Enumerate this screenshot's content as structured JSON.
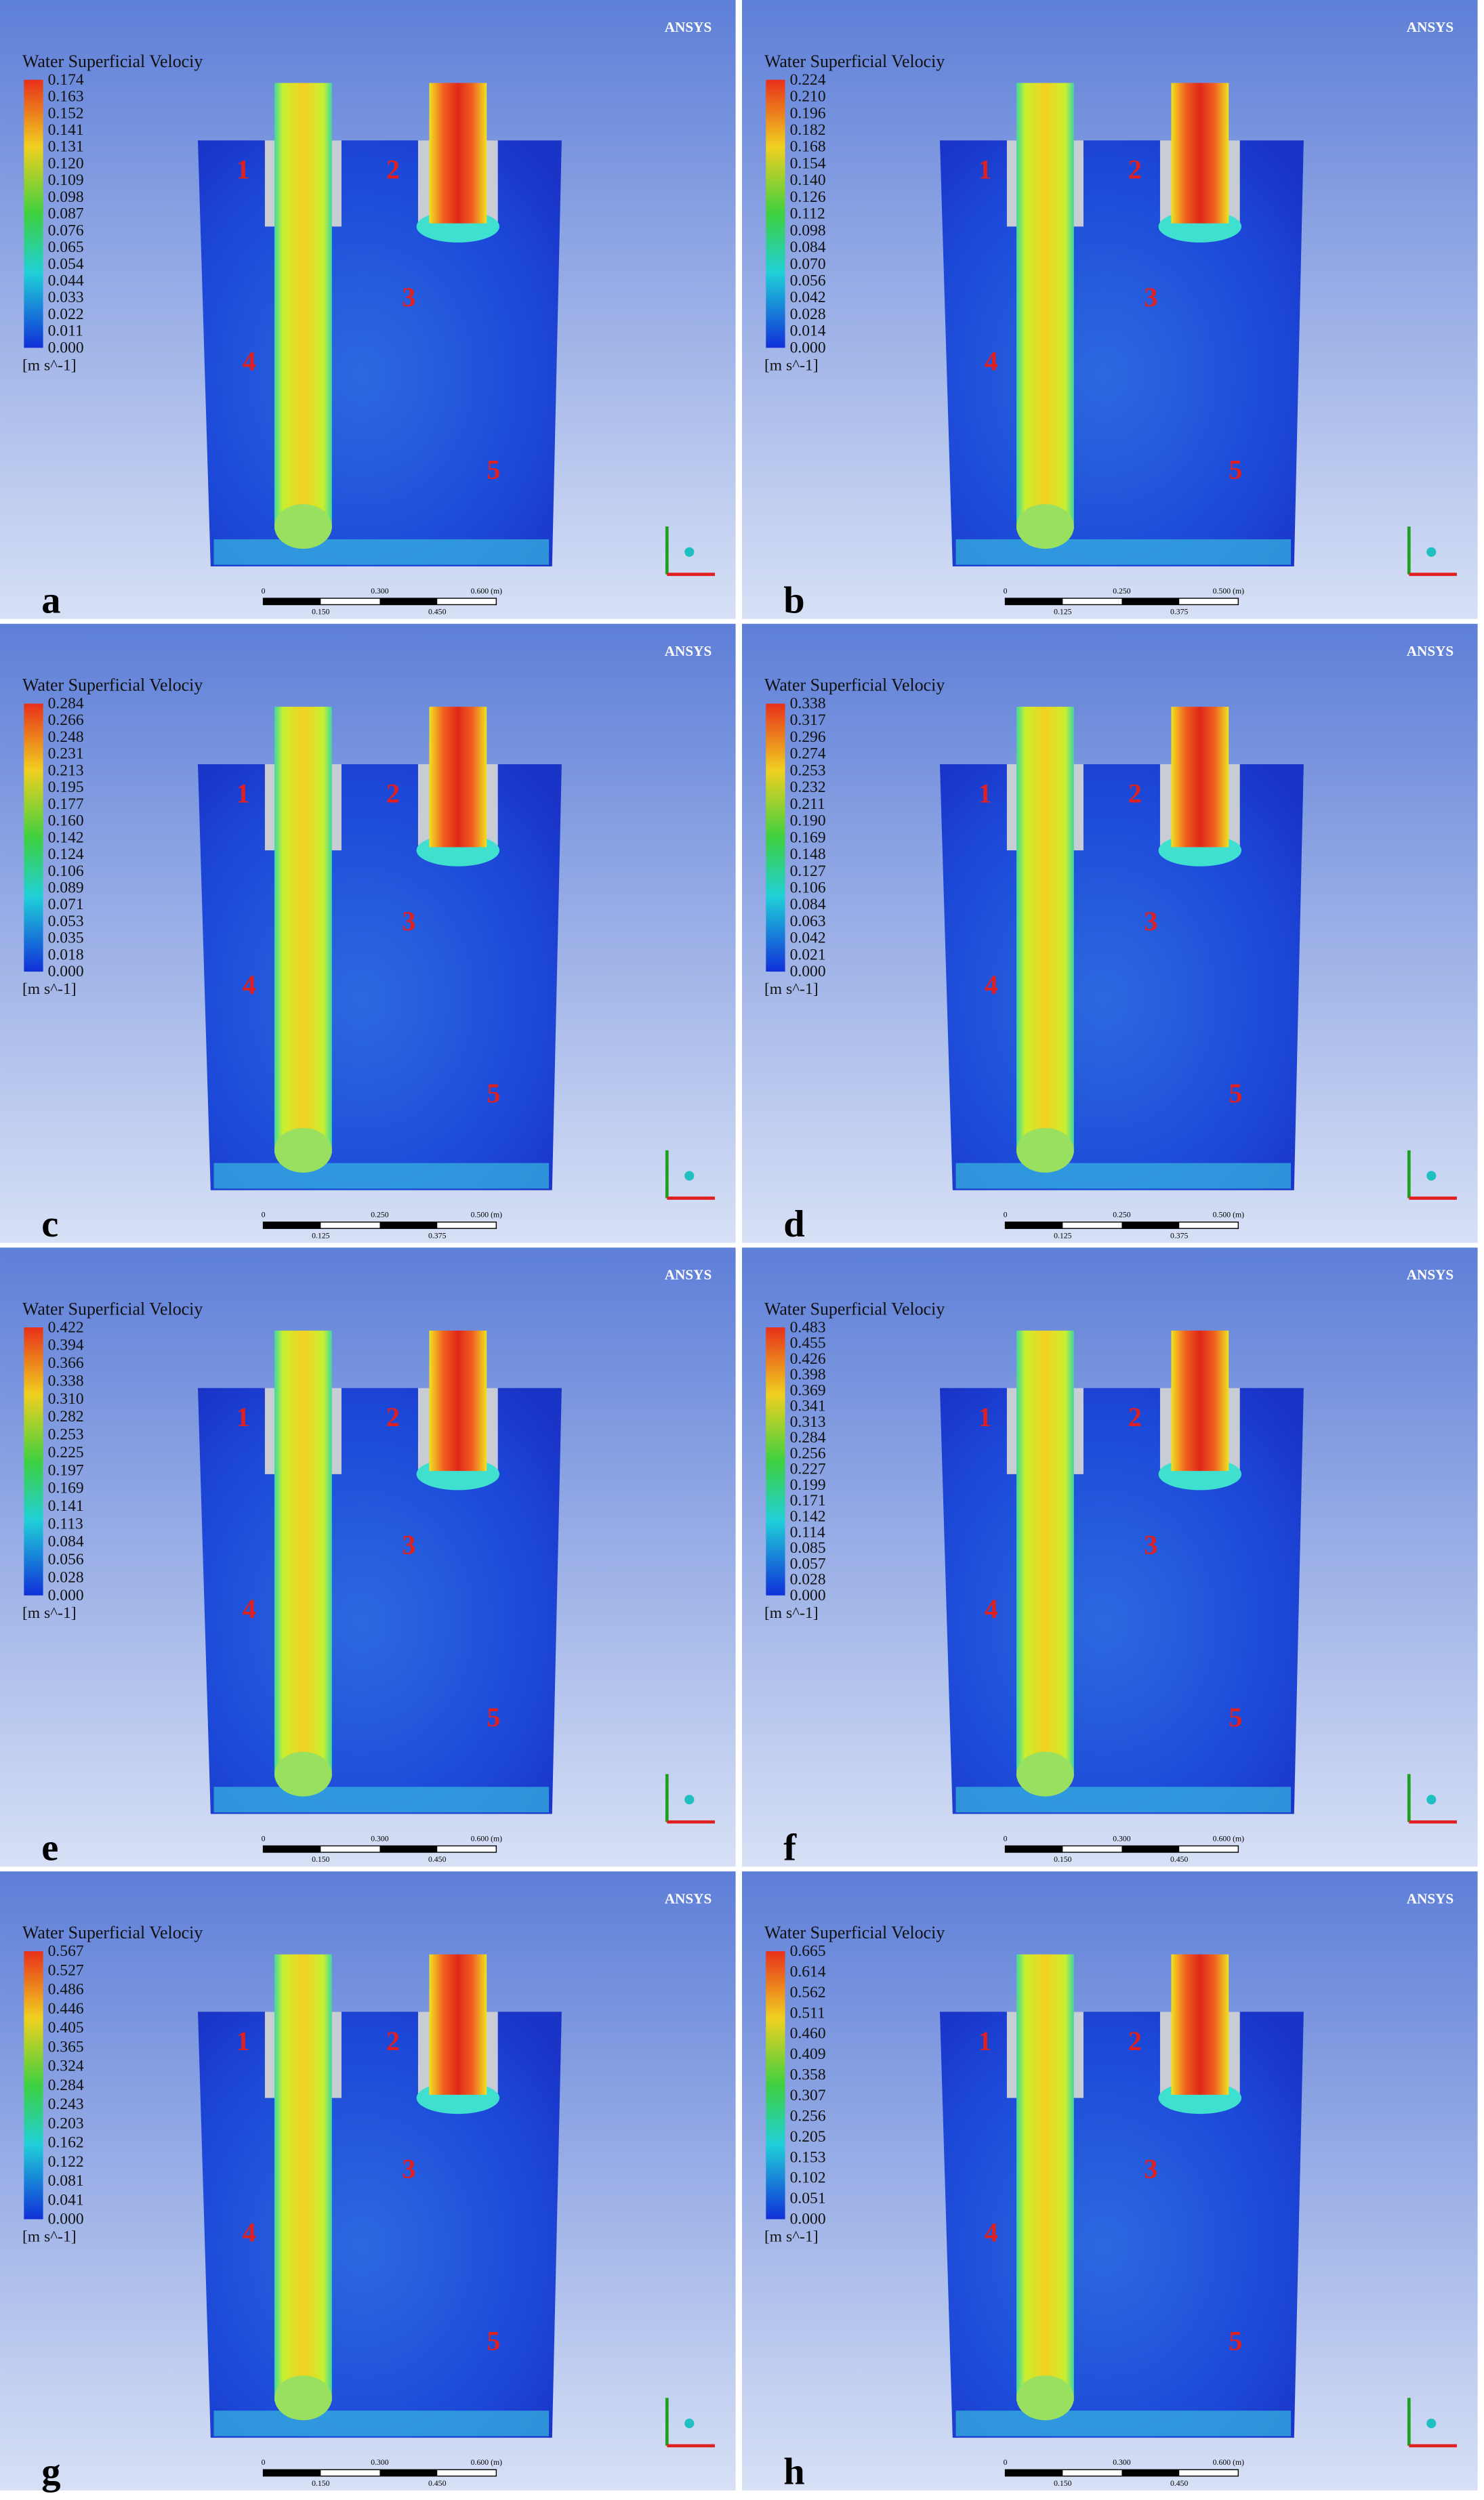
{
  "panels": [
    {
      "letter": "a",
      "logo": "ANSYS",
      "legend_title": "Water Superficial Velociy",
      "unit": "[m s^-1]",
      "ticks": [
        "0.174",
        "0.163",
        "0.152",
        "0.141",
        "0.131",
        "0.120",
        "0.109",
        "0.098",
        "0.087",
        "0.076",
        "0.065",
        "0.054",
        "0.044",
        "0.033",
        "0.022",
        "0.011",
        "0.000"
      ],
      "regions": [
        "1",
        "2",
        "3",
        "4",
        "5"
      ],
      "scale_labels": [
        "0",
        "0.300",
        "0.600 (m)",
        "0.150",
        "0.450"
      ]
    },
    {
      "letter": "b",
      "logo": "ANSYS",
      "legend_title": "Water Superficial Velociy",
      "unit": "[m s^-1]",
      "ticks": [
        "0.224",
        "0.210",
        "0.196",
        "0.182",
        "0.168",
        "0.154",
        "0.140",
        "0.126",
        "0.112",
        "0.098",
        "0.084",
        "0.070",
        "0.056",
        "0.042",
        "0.028",
        "0.014",
        "0.000"
      ],
      "regions": [
        "1",
        "2",
        "3",
        "4",
        "5"
      ],
      "scale_labels": [
        "0",
        "0.250",
        "0.500 (m)",
        "0.125",
        "0.375"
      ]
    },
    {
      "letter": "c",
      "logo": "ANSYS",
      "legend_title": "Water Superficial Velociy",
      "unit": "[m s^-1]",
      "ticks": [
        "0.284",
        "0.266",
        "0.248",
        "0.231",
        "0.213",
        "0.195",
        "0.177",
        "0.160",
        "0.142",
        "0.124",
        "0.106",
        "0.089",
        "0.071",
        "0.053",
        "0.035",
        "0.018",
        "0.000"
      ],
      "regions": [
        "1",
        "2",
        "3",
        "4",
        "5"
      ],
      "scale_labels": [
        "0",
        "0.250",
        "0.500 (m)",
        "0.125",
        "0.375"
      ]
    },
    {
      "letter": "d",
      "logo": "ANSYS",
      "legend_title": "Water Superficial Velociy",
      "unit": "[m s^-1]",
      "ticks": [
        "0.338",
        "0.317",
        "0.296",
        "0.274",
        "0.253",
        "0.232",
        "0.211",
        "0.190",
        "0.169",
        "0.148",
        "0.127",
        "0.106",
        "0.084",
        "0.063",
        "0.042",
        "0.021",
        "0.000"
      ],
      "regions": [
        "1",
        "2",
        "3",
        "4",
        "5"
      ],
      "scale_labels": [
        "0",
        "0.250",
        "0.500 (m)",
        "0.125",
        "0.375"
      ]
    },
    {
      "letter": "e",
      "logo": "ANSYS",
      "legend_title": "Water Superficial Velociy",
      "unit": "[m s^-1]",
      "ticks": [
        "0.422",
        "0.394",
        "0.366",
        "0.338",
        "0.310",
        "0.282",
        "0.253",
        "0.225",
        "0.197",
        "0.169",
        "0.141",
        "0.113",
        "0.084",
        "0.056",
        "0.028",
        "0.000"
      ],
      "regions": [
        "1",
        "2",
        "3",
        "4",
        "5"
      ],
      "scale_labels": [
        "0",
        "0.300",
        "0.600 (m)",
        "0.150",
        "0.450"
      ]
    },
    {
      "letter": "f",
      "logo": "ANSYS",
      "legend_title": "Water Superficial Velociy",
      "unit": "[m s^-1]",
      "ticks": [
        "0.483",
        "0.455",
        "0.426",
        "0.398",
        "0.369",
        "0.341",
        "0.313",
        "0.284",
        "0.256",
        "0.227",
        "0.199",
        "0.171",
        "0.142",
        "0.114",
        "0.085",
        "0.057",
        "0.028",
        "0.000"
      ],
      "regions": [
        "1",
        "2",
        "3",
        "4",
        "5"
      ],
      "scale_labels": [
        "0",
        "0.300",
        "0.600 (m)",
        "0.150",
        "0.450"
      ]
    },
    {
      "letter": "g",
      "logo": "ANSYS",
      "legend_title": "Water Superficial Velociy",
      "unit": "[m s^-1]",
      "ticks": [
        "0.567",
        "0.527",
        "0.486",
        "0.446",
        "0.405",
        "0.365",
        "0.324",
        "0.284",
        "0.243",
        "0.203",
        "0.162",
        "0.122",
        "0.081",
        "0.041",
        "0.000"
      ],
      "regions": [
        "1",
        "2",
        "3",
        "4",
        "5"
      ],
      "scale_labels": [
        "0",
        "0.300",
        "0.600 (m)",
        "0.150",
        "0.450"
      ]
    },
    {
      "letter": "h",
      "logo": "ANSYS",
      "legend_title": "Water Superficial Velociy",
      "unit": "[m s^-1]",
      "ticks": [
        "0.665",
        "0.614",
        "0.562",
        "0.511",
        "0.460",
        "0.409",
        "0.358",
        "0.307",
        "0.256",
        "0.205",
        "0.153",
        "0.102",
        "0.051",
        "0.000"
      ],
      "regions": [
        "1",
        "2",
        "3",
        "4",
        "5"
      ],
      "scale_labels": [
        "0",
        "0.300",
        "0.600 (m)",
        "0.150",
        "0.450"
      ]
    }
  ]
}
